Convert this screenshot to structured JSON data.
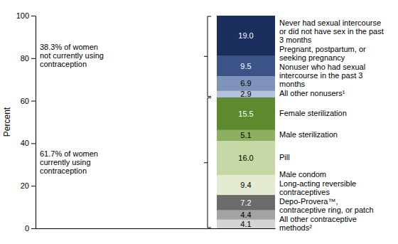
{
  "chart_data": {
    "type": "bar",
    "stacked": true,
    "data_labels": true,
    "tick_labels": "y",
    "y_label": "Percent",
    "categories": [
      null
    ],
    "ylim": [
      0,
      100
    ],
    "yticks": [
      0,
      20,
      40,
      60,
      80,
      100
    ],
    "series": [
      {
        "name": "All other contraceptive methods²",
        "color": "#d4d4d4",
        "values": [
          4.1
        ],
        "value_labels": [
          "4.1"
        ]
      },
      {
        "name": "Depo-Provera™, contraceptive ring, or patch",
        "color": "#a3a3a3",
        "values": [
          4.4
        ],
        "value_labels": [
          "4.4"
        ]
      },
      {
        "name": "Long-acting reversible contraceptives",
        "color": "#6b6b6b",
        "values": [
          7.2
        ],
        "value_labels": [
          "7.2"
        ]
      },
      {
        "name": "Male condom",
        "color": "#e3ebd3",
        "values": [
          9.4
        ],
        "value_labels": [
          "9.4"
        ]
      },
      {
        "name": "Pill",
        "color": "#c6d8a6",
        "values": [
          16.0
        ],
        "value_labels": [
          "16.0"
        ]
      },
      {
        "name": "Male sterilization",
        "color": "#8eaf62",
        "values": [
          5.1
        ],
        "value_labels": [
          "5.1"
        ]
      },
      {
        "name": "Female sterilization",
        "color": "#5c8a2c",
        "values": [
          15.5
        ],
        "value_labels": [
          "15.5"
        ]
      },
      {
        "name": "All other nonusers¹",
        "color": "#b6c2dc",
        "values": [
          2.9
        ],
        "value_labels": [
          "2.9"
        ]
      },
      {
        "name": "Nonuser who had sexual intercourse in the past 3 months",
        "color": "#7e92ba",
        "values": [
          6.9
        ],
        "value_labels": [
          "6.9"
        ]
      },
      {
        "name": "Pregnant, postpartum, or seeking pregnancy",
        "color": "#3b5387",
        "values": [
          9.5
        ],
        "value_labels": [
          "9.5"
        ]
      },
      {
        "name": "Never had sexual intercourse or did not have sex in the past 3 months",
        "color": "#1a2f5e",
        "values": [
          19.0
        ],
        "value_labels": [
          "19.0"
        ]
      }
    ],
    "annotations": [
      {
        "text": "38.3% of women not currently using contraception",
        "y": [
          61.7,
          100
        ]
      },
      {
        "text": "61.7% of women currently using contraception",
        "y": [
          0,
          61.7
        ]
      }
    ]
  }
}
